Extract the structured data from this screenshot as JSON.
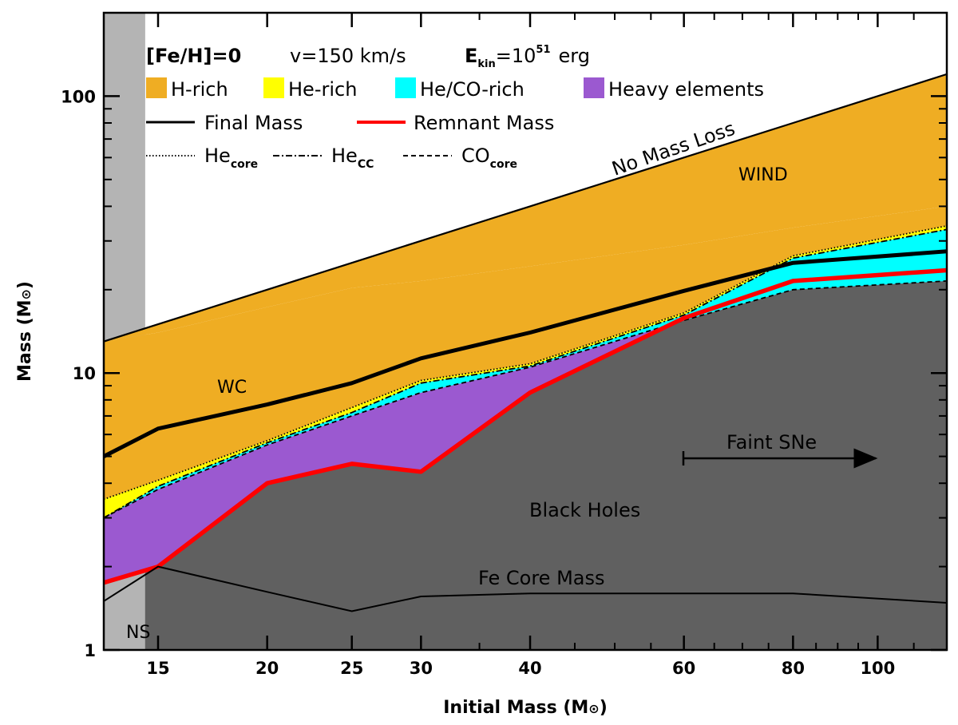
{
  "chart_data": {
    "type": "area",
    "xscale": "log",
    "yscale": "log",
    "xlim": [
      13,
      120
    ],
    "ylim": [
      1,
      200
    ],
    "xlabel": "Initial Mass (M",
    "ylabel": "Mass (M",
    "sun_symbol": "⊙",
    "xticks": [
      15,
      20,
      25,
      30,
      40,
      60,
      80,
      100
    ],
    "xtick_labels": [
      "15",
      "20",
      "25",
      "30",
      "40",
      "60",
      "80",
      "100"
    ],
    "yticks": [
      1,
      10,
      100
    ],
    "ytick_labels": [
      "1",
      "10",
      "100"
    ],
    "header": {
      "feh": "[Fe/H]=0",
      "vel": "v=150 km/s",
      "ekin_pre": "E",
      "ekin_sub": "kin",
      "ekin_eq": "=10",
      "ekin_sup": "51",
      "ekin_unit": "erg"
    },
    "legend": {
      "position": "top-left",
      "areas": [
        {
          "label": "H-rich",
          "color": "#efad23"
        },
        {
          "label": "He-rich",
          "color": "#ffff00"
        },
        {
          "label": "He/CO-rich",
          "color": "#00ffff"
        },
        {
          "label": "Heavy elements",
          "color": "#9b59d0"
        }
      ],
      "lines": [
        {
          "label": "Final Mass",
          "color": "#000000"
        },
        {
          "label": "Remnant Mass",
          "color": "#ff0000"
        }
      ],
      "cores": [
        {
          "base": "He",
          "sub": "core",
          "style": "dotted"
        },
        {
          "base": "He",
          "sub": "CC",
          "style": "dashdot"
        },
        {
          "base": "CO",
          "sub": "core",
          "style": "dashed"
        }
      ]
    },
    "x": [
      13,
      15,
      20,
      25,
      30,
      40,
      60,
      80,
      120
    ],
    "series": [
      {
        "name": "No Mass Loss",
        "values": [
          13,
          15,
          20,
          25,
          30,
          40,
          60,
          80,
          120
        ]
      },
      {
        "name": "He_core",
        "values": [
          3.5,
          4.1,
          5.7,
          7.5,
          9.4,
          10.8,
          16.5,
          26.5,
          34
        ]
      },
      {
        "name": "He_CC",
        "values": [
          3.0,
          3.9,
          5.6,
          7.2,
          9.2,
          10.6,
          16.2,
          26,
          33
        ]
      },
      {
        "name": "Final Mass",
        "values": [
          5.0,
          6.3,
          7.7,
          9.2,
          11.3,
          14,
          19.8,
          25,
          27.5
        ]
      },
      {
        "name": "CO_core",
        "values": [
          3.0,
          3.8,
          5.5,
          7.0,
          8.5,
          10.5,
          15.5,
          20,
          21.5
        ]
      },
      {
        "name": "Remnant Mass",
        "values": [
          1.75,
          2.0,
          4.0,
          4.7,
          4.4,
          8.5,
          15.8,
          21.5,
          23.5
        ]
      },
      {
        "name": "Fe Core Mass",
        "values": [
          1.5,
          2.0,
          1.62,
          1.38,
          1.56,
          1.6,
          1.6,
          1.6,
          1.48
        ]
      },
      {
        "name": "H-rich top",
        "values": [
          13,
          14,
          17.3,
          20.3,
          21.5,
          24.3,
          29,
          33.5,
          40
        ]
      }
    ],
    "ns_boundary_x": 14.5,
    "colors": {
      "h_rich": "#efad23",
      "he_rich": "#ffff00",
      "heco_rich": "#00ffff",
      "heavy": "#9b59d0",
      "black_holes": "#606060",
      "neutron_stars": "#b4b4b4",
      "remnant": "#ff0000"
    },
    "annotations": {
      "no_mass_loss": "No Mass Loss",
      "wind": "WIND",
      "wc": "WC",
      "faint_sne": "Faint SNe",
      "black_holes": "Black Holes",
      "fe_core": "Fe Core Mass",
      "ns": "NS"
    }
  }
}
